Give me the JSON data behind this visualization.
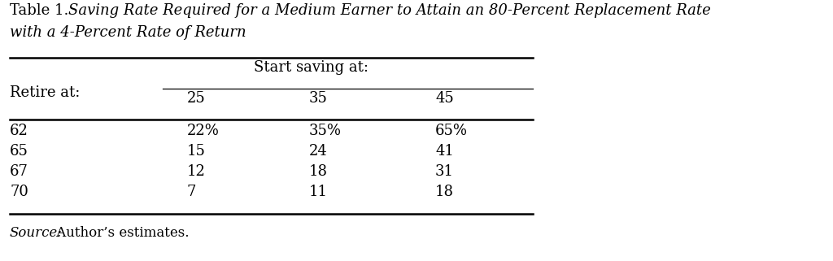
{
  "title_normal": "Table 1. ",
  "title_italic_line1": "Saving Rate Required for a Medium Earner to Attain an 80-Percent Replacement Rate",
  "title_italic_line2": "with a 4-Percent Rate of Return",
  "col_header_main": "Start saving at:",
  "col_header_row_label": "Retire at:",
  "sub_headers": [
    "25",
    "35",
    "45"
  ],
  "rows": [
    {
      "retire": "62",
      "vals": [
        "22%",
        "35%",
        "65%"
      ]
    },
    {
      "retire": "65",
      "vals": [
        "15",
        "24",
        "41"
      ]
    },
    {
      "retire": "67",
      "vals": [
        "12",
        "18",
        "31"
      ]
    },
    {
      "retire": "70",
      "vals": [
        "7",
        "11",
        "18"
      ]
    }
  ],
  "source_italic": "Source:",
  "source_normal": " Author’s estimates.",
  "bg_color": "#ffffff",
  "text_color": "#000000",
  "font_size": 13,
  "title_font_size": 13
}
